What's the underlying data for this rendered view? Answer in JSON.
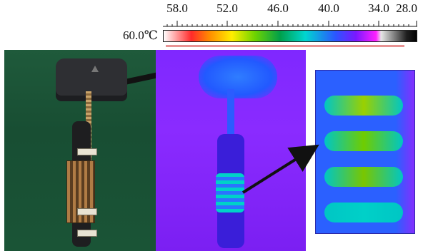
{
  "scale": {
    "ticks": [
      "58.0",
      "52.0",
      "46.0",
      "40.0",
      "34.0",
      "28.0"
    ],
    "max_label": "60.0℃"
  },
  "panels": {
    "photo": {
      "icon": "device-photo"
    },
    "thermal": {
      "icon": "thermal-image"
    },
    "zoom": {
      "icon": "zoomed-coil-thermal"
    }
  },
  "colors": {
    "marker": "#e89393"
  }
}
